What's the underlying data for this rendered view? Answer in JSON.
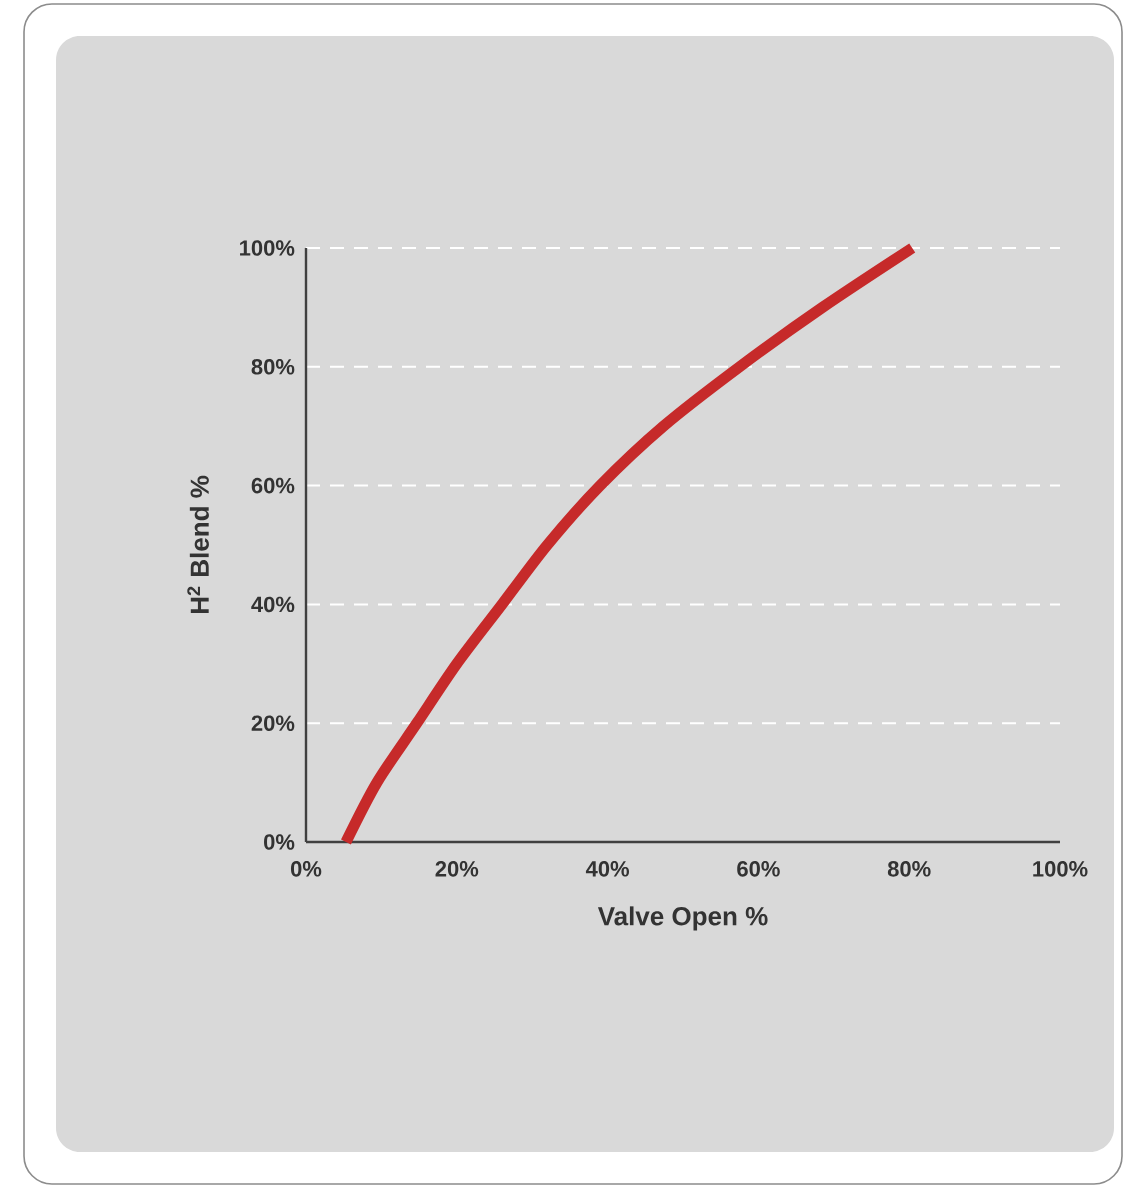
{
  "chart_data": {
    "type": "line",
    "xlabel": "Valve Open %",
    "ylabel": "H$^{2}$ Blend  %",
    "x": [
      5.3,
      9.4,
      14.7,
      20,
      26,
      32,
      39,
      47.4,
      57.5,
      68.5,
      80.4
    ],
    "series": [
      {
        "color": "#c62a2a",
        "values": [
          0,
          10,
          20,
          30,
          40,
          50,
          60,
          70,
          80,
          90,
          100
        ]
      }
    ],
    "xlim": [
      0,
      100
    ],
    "ylim": [
      0,
      100
    ],
    "xticks": [
      {
        "value": 0,
        "label": "0%"
      },
      {
        "value": 20,
        "label": "20%"
      },
      {
        "value": 40,
        "label": "40%"
      },
      {
        "value": 60,
        "label": "60%"
      },
      {
        "value": 80,
        "label": "80%"
      },
      {
        "value": 100,
        "label": "100%"
      }
    ],
    "yticks": [
      {
        "value": 0,
        "label": "0%"
      },
      {
        "value": 20,
        "label": "20%"
      },
      {
        "value": 40,
        "label": "40%"
      },
      {
        "value": 60,
        "label": "60%"
      },
      {
        "value": 80,
        "label": "80%"
      },
      {
        "value": 100,
        "label": "100%"
      }
    ],
    "grid": "y",
    "marker": "none"
  }
}
